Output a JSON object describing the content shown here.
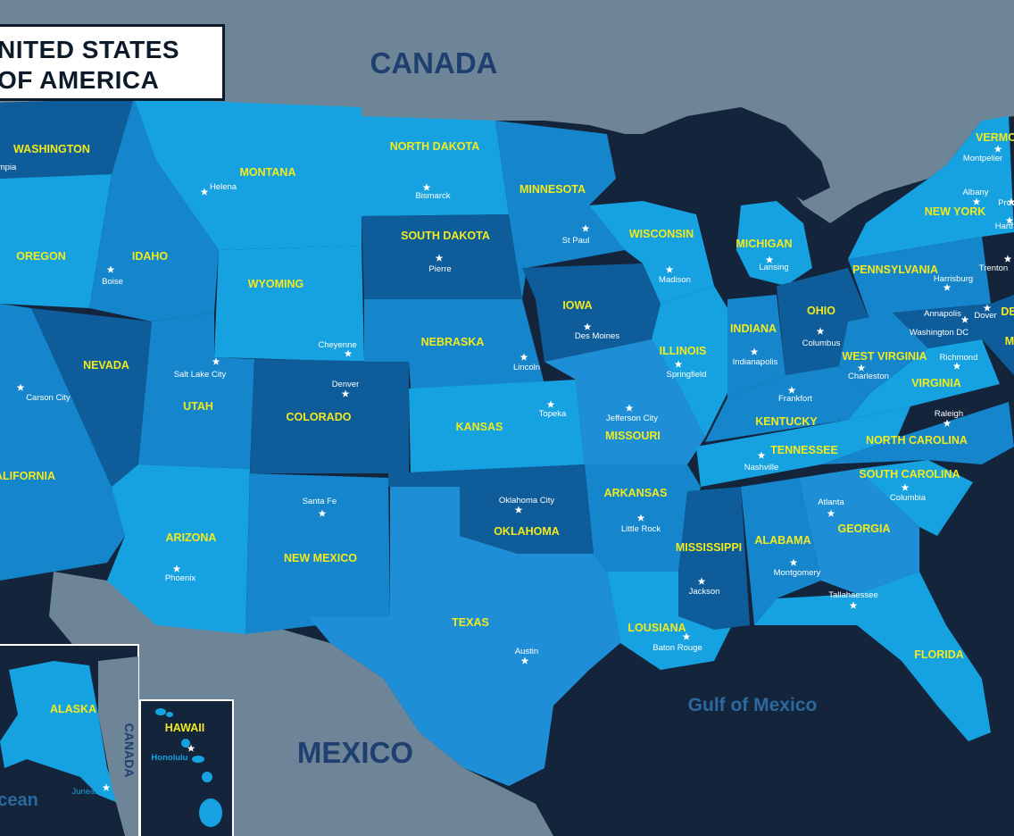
{
  "title": {
    "line1": "NITED STATES",
    "line2": "OF AMERICA"
  },
  "countries": {
    "canada": "CANADA",
    "mexico": "MEXICO",
    "canada_inset": "CANADA"
  },
  "waters": {
    "gulf": "Gulf of Mexico",
    "ocean": "cean"
  },
  "colors": {
    "background": "#13243b",
    "land_gray": "#6d8596",
    "state_light": "#16a2e0",
    "state_mid": "#1585cc",
    "state_dark": "#0e5c99",
    "label_yellow": "#f2ea1d"
  },
  "states": {
    "washington": "WASHINGTON",
    "oregon": "OREGON",
    "california": "ALIFORNIA",
    "nevada": "NEVADA",
    "idaho": "IDAHO",
    "montana": "MONTANA",
    "wyoming": "WYOMING",
    "utah": "UTAH",
    "arizona": "ARIZONA",
    "colorado": "COLORADO",
    "new_mexico": "NEW MEXICO",
    "north_dakota": "NORTH DAKOTA",
    "south_dakota": "SOUTH DAKOTA",
    "nebraska": "NEBRASKA",
    "kansas": "KANSAS",
    "oklahoma": "OKLAHOMA",
    "texas": "TEXAS",
    "minnesota": "MINNESOTA",
    "iowa": "IOWA",
    "missouri": "MISSOURI",
    "arkansas": "ARKANSAS",
    "louisiana": "LOUSIANA",
    "wisconsin": "WISCONSIN",
    "illinois": "ILLINOIS",
    "mississippi": "MISSISSIPPI",
    "michigan": "MICHIGAN",
    "indiana": "INDIANA",
    "ohio": "OHIO",
    "kentucky": "KENTUCKY",
    "tennessee": "TENNESSEE",
    "alabama": "ALABAMA",
    "georgia": "GEORGIA",
    "florida": "FLORIDA",
    "south_carolina": "SOUTH CAROLINA",
    "north_carolina": "NORTH CAROLINA",
    "virginia": "VIRGINIA",
    "west_virginia": "WEST VIRGINIA",
    "pennsylvania": "PENNSYLVANIA",
    "new_york": "NEW YORK",
    "vermont": "VERMO",
    "alaska": "ALASKA",
    "hawaii": "HAWAII",
    "delaware": "DE",
    "maryland": "M"
  },
  "capitals": {
    "olympia": "mpia",
    "helena": "Helena",
    "boise": "Boise",
    "carson_city": "Carson City",
    "salt_lake_city": "Salt Lake City",
    "cheyenne": "Cheyenne",
    "denver": "Denver",
    "phoenix": "Phoenix",
    "santa_fe": "Santa Fe",
    "bismarck": "Bismarck",
    "pierre": "Pierre",
    "lincoln": "Lincoln",
    "topeka": "Topeka",
    "oklahoma_city": "Oklahoma City",
    "austin": "Austin",
    "st_paul": "St Paul",
    "des_moines": "Des Moines",
    "jefferson_city": "Jefferson City",
    "little_rock": "Little Rock",
    "baton_rouge": "Baton Rouge",
    "madison": "Madison",
    "springfield": "Springfield",
    "jackson": "Jackson",
    "lansing": "Lansing",
    "indianapolis": "Indianapolis",
    "columbus_oh": "Columbus",
    "frankfort": "Frankfort",
    "nashville": "Nashville",
    "montgomery": "Montgomery",
    "atlanta": "Atlanta",
    "tallahassee": "Tallahaessee",
    "columbia": "Columbia",
    "raleigh": "Raleigh",
    "richmond": "Richmond",
    "charleston": "Charleston",
    "harrisburg": "Harrisburg",
    "annapolis": "Annapolis",
    "washington_dc": "Washington DC",
    "dover": "Dover",
    "trenton": "Trenton",
    "albany": "Albany",
    "montpelier": "Montpelier",
    "providence": "Prov",
    "hartford": "Hartf",
    "juneau": "Juneau",
    "honolulu": "Honolulu"
  }
}
